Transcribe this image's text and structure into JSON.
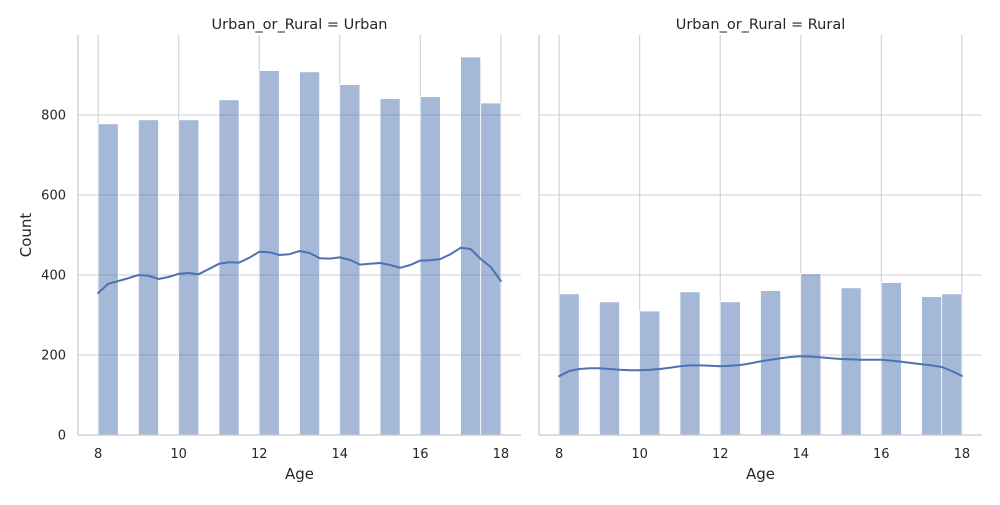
{
  "chart_data": [
    {
      "type": "histogram",
      "title": "Urban_or_Rural = Urban",
      "xlabel": "Age",
      "ylabel": "Count",
      "xlim": [
        7.5,
        18.5
      ],
      "ylim": [
        0,
        1000
      ],
      "x_ticks": [
        8,
        10,
        12,
        14,
        16,
        18
      ],
      "y_ticks": [
        0,
        200,
        400,
        600,
        800
      ],
      "grid": true,
      "bins": [
        {
          "x0": 8.0,
          "x1": 8.5,
          "count": 778
        },
        {
          "x0": 9.0,
          "x1": 9.5,
          "count": 788
        },
        {
          "x0": 10.0,
          "x1": 10.5,
          "count": 788
        },
        {
          "x0": 11.0,
          "x1": 11.5,
          "count": 838
        },
        {
          "x0": 12.0,
          "x1": 12.5,
          "count": 911
        },
        {
          "x0": 13.0,
          "x1": 13.5,
          "count": 908
        },
        {
          "x0": 14.0,
          "x1": 14.5,
          "count": 876
        },
        {
          "x0": 15.0,
          "x1": 15.5,
          "count": 841
        },
        {
          "x0": 16.0,
          "x1": 16.5,
          "count": 846
        },
        {
          "x0": 17.0,
          "x1": 17.5,
          "count": 945
        },
        {
          "x0": 17.5,
          "x1": 18.0,
          "count": 830
        }
      ],
      "kde": {
        "x": [
          8.0,
          8.25,
          8.5,
          8.75,
          9.0,
          9.25,
          9.5,
          9.75,
          10.0,
          10.25,
          10.5,
          10.75,
          11.0,
          11.25,
          11.5,
          11.75,
          12.0,
          12.25,
          12.5,
          12.75,
          13.0,
          13.25,
          13.5,
          13.75,
          14.0,
          14.25,
          14.5,
          14.75,
          15.0,
          15.25,
          15.5,
          15.75,
          16.0,
          16.25,
          16.5,
          16.75,
          17.0,
          17.25,
          17.5,
          17.75,
          18.0
        ],
        "y": [
          355,
          378,
          385,
          392,
          400,
          398,
          390,
          395,
          403,
          405,
          402,
          415,
          428,
          432,
          431,
          443,
          458,
          457,
          450,
          452,
          460,
          455,
          442,
          441,
          444,
          438,
          426,
          428,
          430,
          425,
          418,
          425,
          436,
          437,
          440,
          452,
          468,
          465,
          440,
          420,
          385
        ]
      }
    },
    {
      "type": "histogram",
      "title": "Urban_or_Rural = Rural",
      "xlabel": "Age",
      "ylabel": "",
      "xlim": [
        7.5,
        18.5
      ],
      "ylim": [
        0,
        1000
      ],
      "x_ticks": [
        8,
        10,
        12,
        14,
        16,
        18
      ],
      "y_ticks": [
        0,
        200,
        400,
        600,
        800
      ],
      "grid": true,
      "bins": [
        {
          "x0": 8.0,
          "x1": 8.5,
          "count": 353
        },
        {
          "x0": 9.0,
          "x1": 9.5,
          "count": 333
        },
        {
          "x0": 10.0,
          "x1": 10.5,
          "count": 310
        },
        {
          "x0": 11.0,
          "x1": 11.5,
          "count": 358
        },
        {
          "x0": 12.0,
          "x1": 12.5,
          "count": 333
        },
        {
          "x0": 13.0,
          "x1": 13.5,
          "count": 361
        },
        {
          "x0": 14.0,
          "x1": 14.5,
          "count": 403
        },
        {
          "x0": 15.0,
          "x1": 15.5,
          "count": 368
        },
        {
          "x0": 16.0,
          "x1": 16.5,
          "count": 381
        },
        {
          "x0": 17.0,
          "x1": 17.5,
          "count": 346
        },
        {
          "x0": 17.5,
          "x1": 18.0,
          "count": 353
        }
      ],
      "kde": {
        "x": [
          8.0,
          8.25,
          8.5,
          8.75,
          9.0,
          9.25,
          9.5,
          9.75,
          10.0,
          10.25,
          10.5,
          10.75,
          11.0,
          11.25,
          11.5,
          11.75,
          12.0,
          12.25,
          12.5,
          12.75,
          13.0,
          13.25,
          13.5,
          13.75,
          14.0,
          14.25,
          14.5,
          14.75,
          15.0,
          15.25,
          15.5,
          15.75,
          16.0,
          16.25,
          16.5,
          16.75,
          17.0,
          17.25,
          17.5,
          17.75,
          18.0
        ],
        "y": [
          147,
          160,
          165,
          167,
          167,
          165,
          163,
          162,
          162,
          163,
          165,
          168,
          172,
          174,
          174,
          173,
          172,
          173,
          175,
          179,
          184,
          188,
          192,
          195,
          197,
          196,
          194,
          192,
          190,
          189,
          188,
          188,
          188,
          186,
          183,
          180,
          177,
          174,
          170,
          160,
          148
        ]
      }
    }
  ]
}
